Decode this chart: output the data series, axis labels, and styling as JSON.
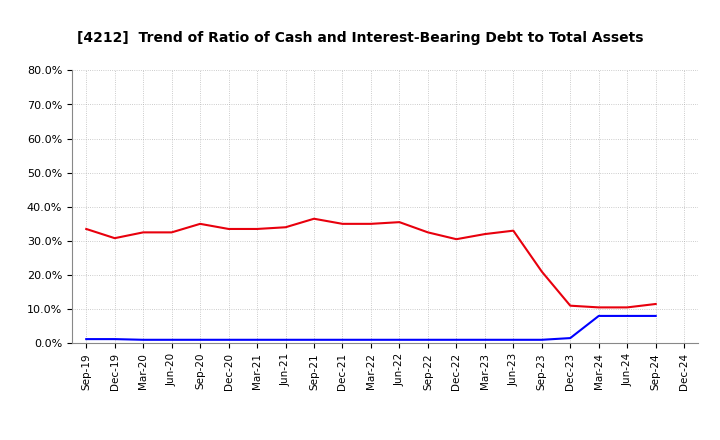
{
  "title": "[4212]  Trend of Ratio of Cash and Interest-Bearing Debt to Total Assets",
  "x_labels": [
    "Sep-19",
    "Dec-19",
    "Mar-20",
    "Jun-20",
    "Sep-20",
    "Dec-20",
    "Mar-21",
    "Jun-21",
    "Sep-21",
    "Dec-21",
    "Mar-22",
    "Jun-22",
    "Sep-22",
    "Dec-22",
    "Mar-23",
    "Jun-23",
    "Sep-23",
    "Dec-23",
    "Mar-24",
    "Jun-24",
    "Sep-24",
    "Dec-24"
  ],
  "cash": [
    33.5,
    30.8,
    32.5,
    32.5,
    35.0,
    33.5,
    33.5,
    34.0,
    36.5,
    35.0,
    35.0,
    35.5,
    32.5,
    30.5,
    32.0,
    33.0,
    21.0,
    11.0,
    10.5,
    10.5,
    11.5,
    null
  ],
  "ibd": [
    1.2,
    1.2,
    1.0,
    1.0,
    1.0,
    1.0,
    1.0,
    1.0,
    1.0,
    1.0,
    1.0,
    1.0,
    1.0,
    1.0,
    1.0,
    1.0,
    1.0,
    1.5,
    8.0,
    8.0,
    8.0,
    null
  ],
  "cash_color": "#e8000d",
  "ibd_color": "#0000ff",
  "background_color": "#ffffff",
  "grid_color": "#aaaaaa",
  "ylim": [
    0,
    80
  ],
  "yticks": [
    0,
    10,
    20,
    30,
    40,
    50,
    60,
    70,
    80
  ]
}
